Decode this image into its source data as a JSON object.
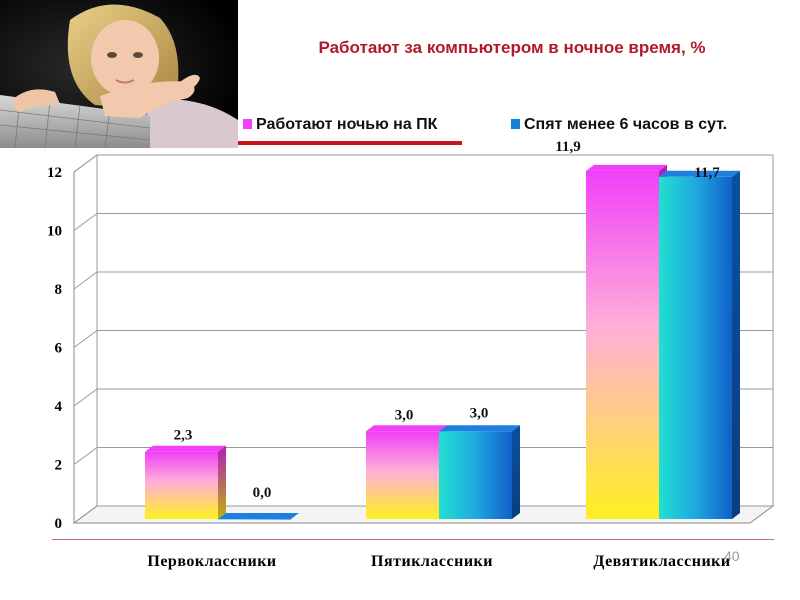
{
  "slide": {
    "number": "40"
  },
  "photo": {
    "icon": "child-at-laptop-photo"
  },
  "chart_data": {
    "type": "bar",
    "title": "Работают за компьютером в ночное время, %",
    "xlabel": "",
    "ylabel": "",
    "categories": [
      "Первоклассники",
      "Пятиклассники",
      "Девятиклассники"
    ],
    "series": [
      {
        "name": "Работают ночью на ПК",
        "values": [
          2.3,
          3.0,
          11.9
        ],
        "labels": [
          "2,3",
          "3,0",
          "11,9"
        ],
        "color": "#f040f8"
      },
      {
        "name": "Спят менее 6 часов в сут.",
        "values": [
          0.0,
          3.0,
          11.7
        ],
        "labels": [
          "0,0",
          "3,0",
          "11,7"
        ],
        "color": "#1a7fd6"
      }
    ],
    "ylim": [
      0,
      12
    ],
    "yticks": [
      "0",
      "2",
      "4",
      "6",
      "8",
      "10",
      "12"
    ],
    "grid": true,
    "legend_position": "top-right",
    "three_d": true
  }
}
